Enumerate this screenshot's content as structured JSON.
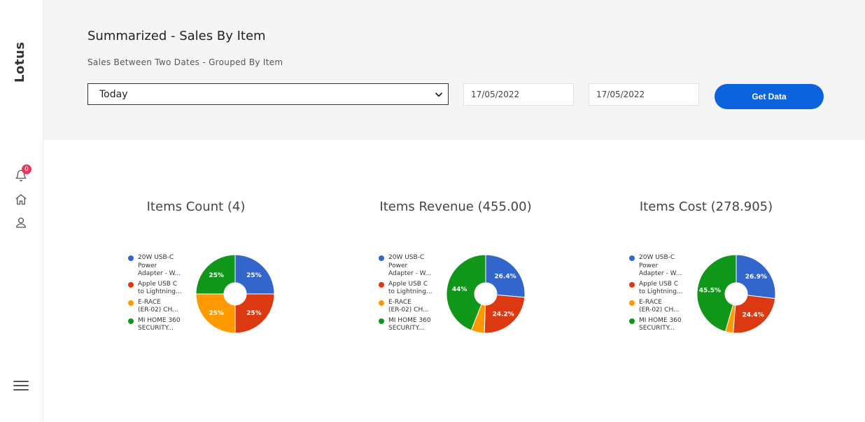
{
  "sidebar": {
    "brand": "Lotus",
    "notification_count": "0"
  },
  "header": {
    "title": "Summarized - Sales By Item",
    "subtitle": "Sales Between Two Dates - Grouped By Item",
    "period_select": "Today",
    "date_from": "17/05/2022",
    "date_to": "17/05/2022",
    "get_data_label": "Get Data"
  },
  "legend_items": [
    {
      "lines": [
        "20W USB-C",
        "Power",
        "Adapter - W..."
      ],
      "color": "#3366cc"
    },
    {
      "lines": [
        "Apple USB C",
        "to Lightning..."
      ],
      "color": "#dc3912"
    },
    {
      "lines": [
        "E-RACE",
        "(ER-02) CH..."
      ],
      "color": "#ff9900"
    },
    {
      "lines": [
        "MI HOME 360",
        "SECURITY..."
      ],
      "color": "#109618"
    }
  ],
  "chart_data": [
    {
      "type": "pie",
      "title": "Items Count (4)",
      "categories": [
        "20W USB-C Power Adapter - W...",
        "Apple USB C to Lightning...",
        "E-RACE (ER-02) CH...",
        "MI HOME 360 SECURITY..."
      ],
      "values": [
        1,
        1,
        1,
        1
      ],
      "labels": [
        "25%",
        "25%",
        "25%",
        "25%"
      ],
      "colors": [
        "#3366cc",
        "#dc3912",
        "#ff9900",
        "#109618"
      ],
      "legend": "left"
    },
    {
      "type": "pie",
      "title": "Items Revenue (455.00)",
      "categories": [
        "20W USB-C Power Adapter - W...",
        "Apple USB C to Lightning...",
        "E-RACE (ER-02) CH...",
        "MI HOME 360 SECURITY..."
      ],
      "values": [
        120,
        110,
        25,
        200
      ],
      "labels": [
        "26.4%",
        "24.2%",
        "",
        "44%"
      ],
      "colors": [
        "#3366cc",
        "#dc3912",
        "#ff9900",
        "#109618"
      ],
      "legend": "left"
    },
    {
      "type": "pie",
      "title": "Items Cost (278.905)",
      "categories": [
        "20W USB-C Power Adapter - W...",
        "Apple USB C to Lightning...",
        "E-RACE (ER-02) CH...",
        "MI HOME 360 SECURITY..."
      ],
      "values": [
        75,
        68,
        9,
        127
      ],
      "labels": [
        "26.9%",
        "24.4%",
        "",
        "45.5%"
      ],
      "colors": [
        "#3366cc",
        "#dc3912",
        "#ff9900",
        "#109618"
      ],
      "legend": "left"
    }
  ]
}
